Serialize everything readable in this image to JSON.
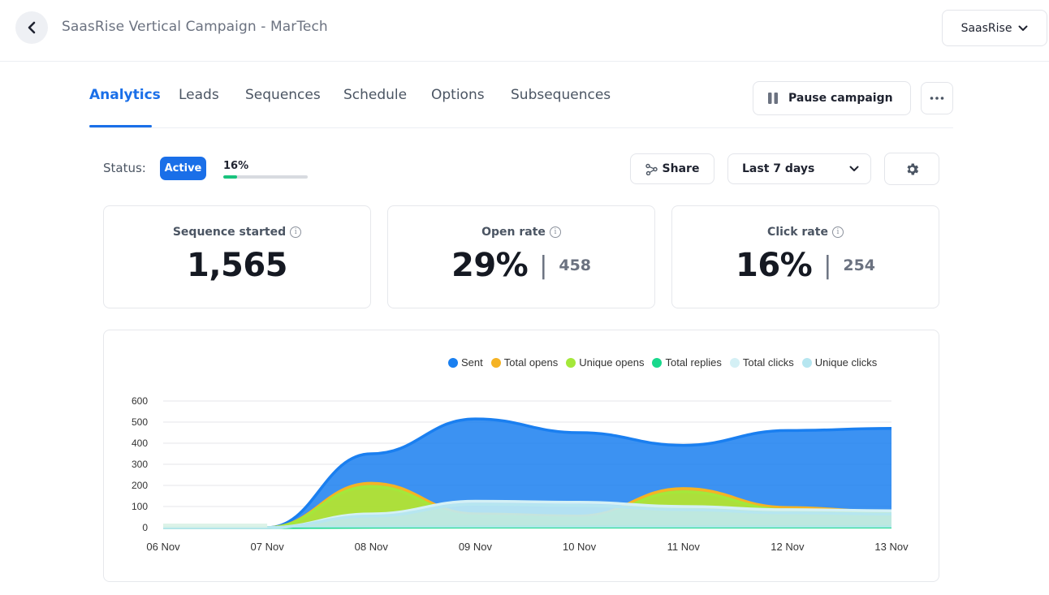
{
  "header": {
    "title": "SaasRise Vertical Campaign - MarTech",
    "workspace": "SaasRise"
  },
  "tabs": [
    {
      "label": "Analytics",
      "active": true
    },
    {
      "label": "Leads",
      "active": false
    },
    {
      "label": "Sequences",
      "active": false
    },
    {
      "label": "Schedule",
      "active": false
    },
    {
      "label": "Options",
      "active": false
    },
    {
      "label": "Subsequences",
      "active": false
    }
  ],
  "actions": {
    "pause_label": "Pause campaign",
    "share_label": "Share",
    "date_range": "Last 7 days"
  },
  "status": {
    "label": "Status:",
    "badge": "Active",
    "progress_text": "16%",
    "progress_value": 0.16
  },
  "stats": {
    "sequence_started": {
      "label": "Sequence started",
      "value": "1,565"
    },
    "open_rate": {
      "label": "Open rate",
      "value": "29%",
      "count": "458"
    },
    "click_rate": {
      "label": "Click rate",
      "value": "16%",
      "count": "254"
    }
  },
  "colors": {
    "accent": "#1a6fe8",
    "sent": "#1a7ff0",
    "total_opens": "#f5b324",
    "unique_opens": "#a4e83a",
    "total_replies": "#19d88c",
    "total_clicks": "#d4f0f5",
    "unique_clicks": "#b6e6f0"
  },
  "chart_data": {
    "type": "area",
    "x": [
      "06 Nov",
      "07 Nov",
      "08 Nov",
      "09 Nov",
      "10 Nov",
      "11 Nov",
      "12 Nov",
      "13 Nov"
    ],
    "ylim": [
      0,
      600
    ],
    "yticks": [
      0,
      100,
      200,
      300,
      400,
      500,
      600
    ],
    "legend_position": "top-right",
    "grid": true,
    "series": [
      {
        "name": "Sent",
        "color": "#1a7ff0",
        "values": [
          0,
          0,
          350,
          515,
          450,
          390,
          460,
          470
        ]
      },
      {
        "name": "Total opens",
        "color": "#f5b324",
        "values": [
          0,
          0,
          210,
          65,
          55,
          185,
          95,
          75
        ]
      },
      {
        "name": "Unique opens",
        "color": "#a4e83a",
        "values": [
          0,
          0,
          195,
          55,
          45,
          170,
          85,
          70
        ]
      },
      {
        "name": "Total replies",
        "color": "#19d88c",
        "values": [
          0,
          0,
          2,
          3,
          3,
          3,
          3,
          3
        ]
      },
      {
        "name": "Total clicks",
        "color": "#d4f0f5",
        "values": [
          0,
          0,
          65,
          125,
          120,
          100,
          85,
          80
        ]
      },
      {
        "name": "Unique clicks",
        "color": "#b6e6f0",
        "values": [
          0,
          0,
          55,
          110,
          105,
          85,
          70,
          65
        ]
      }
    ]
  }
}
